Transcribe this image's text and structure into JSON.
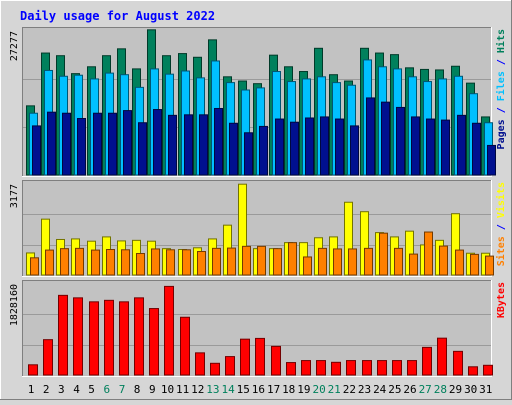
{
  "chart_data": {
    "type": "bar",
    "title": "Daily usage for August 2022",
    "x": [
      "1",
      "2",
      "3",
      "4",
      "5",
      "6",
      "7",
      "8",
      "9",
      "10",
      "11",
      "12",
      "13",
      "14",
      "15",
      "16",
      "17",
      "18",
      "19",
      "20",
      "21",
      "22",
      "23",
      "24",
      "25",
      "26",
      "27",
      "28",
      "29",
      "30",
      "31"
    ],
    "weekend_days": [
      "6",
      "7",
      "13",
      "14",
      "20",
      "21",
      "27",
      "28"
    ],
    "panels": [
      {
        "name": "hits-files-pages",
        "ylabel_max": "27277",
        "ylim": [
          0,
          27277
        ],
        "right_label": [
          "Pages",
          " / ",
          "Files",
          " / ",
          "Hits"
        ],
        "series": [
          {
            "name": "Hits",
            "color": "#00805c",
            "values": [
              13100,
              23100,
              22600,
              19200,
              20500,
              22600,
              23900,
              20100,
              27500,
              22600,
              23000,
              22300,
              25600,
              18600,
              17800,
              17300,
              22700,
              20500,
              19600,
              24000,
              19000,
              17800,
              24000,
              23100,
              22800,
              20300,
              20000,
              19900,
              20600,
              17400,
              11000
            ]
          },
          {
            "name": "Files",
            "color": "#00c0ff",
            "values": [
              11700,
              19800,
              18700,
              18900,
              18200,
              19300,
              19000,
              16600,
              20100,
              19100,
              19700,
              18400,
              21600,
              17500,
              16100,
              16500,
              19600,
              17700,
              18200,
              18600,
              17500,
              17000,
              21800,
              20500,
              20100,
              18600,
              17700,
              18200,
              18700,
              15400,
              9900
            ]
          },
          {
            "name": "Pages",
            "color": "#00108f",
            "values": [
              9300,
              11900,
              11700,
              10700,
              11700,
              11700,
              12200,
              9900,
              12400,
              11300,
              11400,
              11400,
              12600,
              9800,
              8000,
              9200,
              10600,
              10000,
              10800,
              11000,
              10600,
              9300,
              14600,
              13800,
              12800,
              11000,
              10600,
              10400,
              11300,
              9800,
              5600
            ]
          }
        ]
      },
      {
        "name": "sites-visits",
        "ylabel_max": "3177",
        "ylim": [
          0,
          3177
        ],
        "right_label": [
          "Sites",
          " / ",
          "Visits"
        ],
        "series": [
          {
            "name": "Visits",
            "color": "#ffff00",
            "values": [
              770,
              1950,
              1240,
              1260,
              1180,
              1330,
              1190,
              1210,
              1180,
              920,
              890,
              950,
              1260,
              1740,
              3170,
              920,
              920,
              1130,
              1130,
              1300,
              1330,
              2540,
              2210,
              1480,
              1330,
              1530,
              1050,
              1210,
              2140,
              760,
              760
            ]
          },
          {
            "name": "Sites",
            "color": "#ff8000",
            "values": [
              600,
              870,
              920,
              930,
              870,
              890,
              880,
              750,
              910,
              880,
              880,
              820,
              930,
              940,
              1000,
              1000,
              920,
              1130,
              630,
              930,
              910,
              910,
              930,
              1460,
              930,
              730,
              1500,
              1010,
              870,
              720,
              660
            ]
          }
        ]
      },
      {
        "name": "kbytes",
        "ylabel_max": "1828160",
        "ylim": [
          0,
          1828160
        ],
        "right_label": [
          "KBytes"
        ],
        "series": [
          {
            "name": "KBytes",
            "color": "#ff0000",
            "values": [
              205000,
              710000,
              1600000,
              1550000,
              1470000,
              1500000,
              1470000,
              1550000,
              1335000,
              1780000,
              1160000,
              445000,
              235000,
              370000,
              720000,
              735000,
              575000,
              250000,
              290000,
              290000,
              255000,
              290000,
              290000,
              290000,
              290000,
              290000,
              555000,
              740000,
              475000,
              165000,
              195000
            ]
          }
        ]
      }
    ],
    "colors": {
      "title": "#0000ff",
      "frame_light": "#ffffff",
      "frame_dark": "#7f7f7f",
      "plot_bg": "#c2c2c2",
      "weekday_label": "#000000",
      "weekend_label": "#00805c",
      "separator": "#0000ff"
    }
  }
}
